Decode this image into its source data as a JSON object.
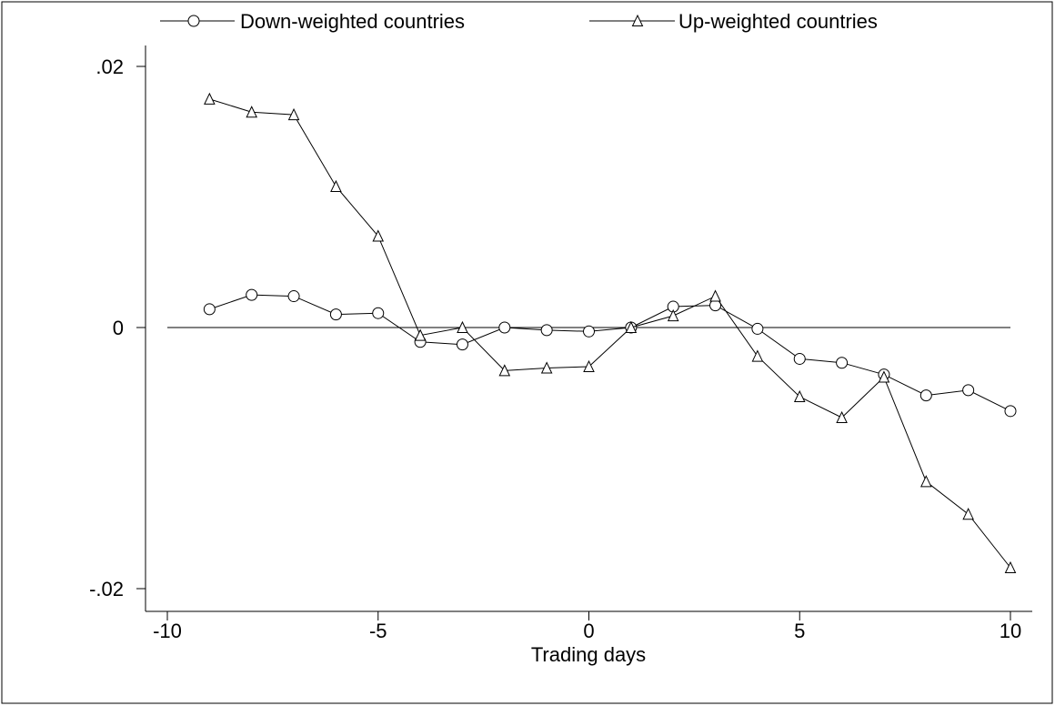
{
  "chart_data": {
    "type": "line",
    "title": "",
    "xlabel": "Trading days",
    "ylabel": "",
    "xlim": [
      -10,
      10
    ],
    "ylim": [
      -0.02,
      0.02
    ],
    "x_ticks": [
      -10,
      -5,
      0,
      5,
      10
    ],
    "x_tick_labels": [
      "-10",
      "-5",
      "0",
      "5",
      "10"
    ],
    "y_ticks": [
      -0.02,
      0,
      0.02
    ],
    "y_tick_labels": [
      "-.02",
      "0",
      ".02"
    ],
    "grid": false,
    "legend_position": "top",
    "reference_line_y": 0,
    "series": [
      {
        "name": "Down-weighted countries",
        "marker": "circle",
        "x": [
          -9,
          -8,
          -7,
          -6,
          -5,
          -4,
          -3,
          -2,
          -1,
          0,
          1,
          2,
          3,
          4,
          5,
          6,
          7,
          8,
          9,
          10
        ],
        "values": [
          0.0014,
          0.0025,
          0.0024,
          0.001,
          0.0011,
          -0.0011,
          -0.0013,
          0.0,
          -0.0002,
          -0.0003,
          0.0,
          0.0016,
          0.0017,
          -0.0001,
          -0.0024,
          -0.0027,
          -0.0036,
          -0.0052,
          -0.0048,
          -0.0064
        ]
      },
      {
        "name": "Up-weighted countries",
        "marker": "triangle",
        "x": [
          -9,
          -8,
          -7,
          -6,
          -5,
          -4,
          -3,
          -2,
          -1,
          0,
          1,
          2,
          3,
          4,
          5,
          6,
          7,
          8,
          9,
          10
        ],
        "values": [
          0.0175,
          0.0165,
          0.0163,
          0.0108,
          0.007,
          -0.0006,
          0.0,
          -0.0033,
          -0.0031,
          -0.003,
          0.0,
          0.0009,
          0.0024,
          -0.0022,
          -0.0053,
          -0.0069,
          -0.0038,
          -0.0118,
          -0.0143,
          -0.0184
        ]
      }
    ]
  }
}
